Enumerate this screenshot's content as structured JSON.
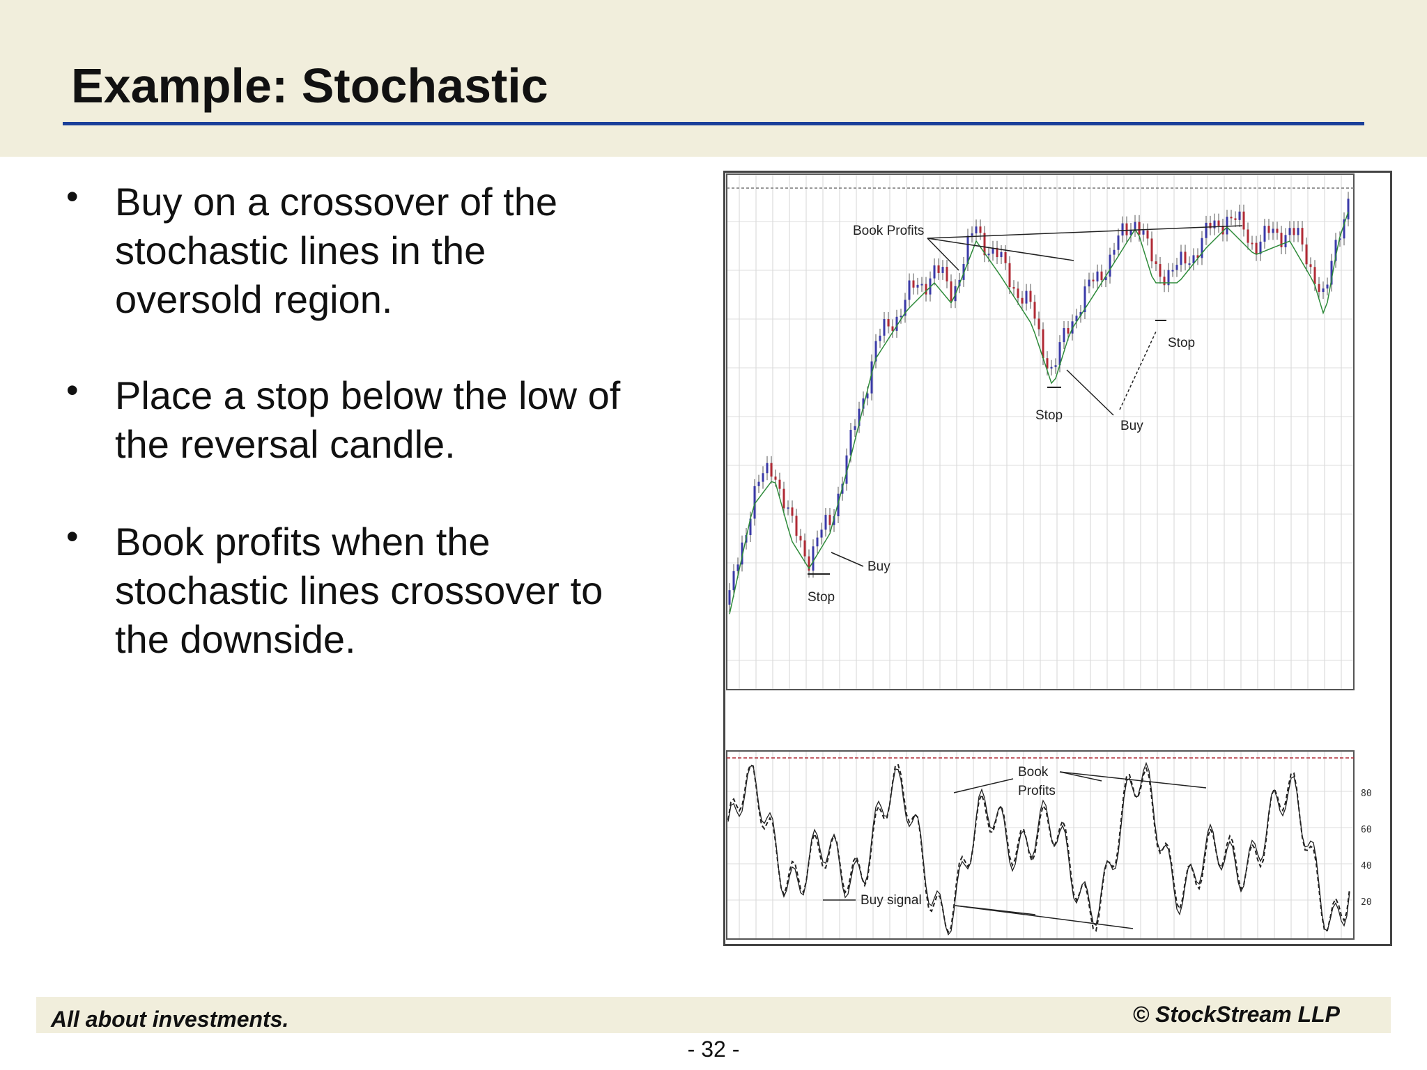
{
  "slide": {
    "title": "Example: Stochastic",
    "bullets": [
      {
        "lines": [
          "Buy on a crossover of the",
          "stochastic lines in the",
          "oversold region."
        ]
      },
      {
        "lines": [
          "Place a stop below the low of",
          "the reversal candle."
        ]
      },
      {
        "lines": [
          "Book profits when the",
          "stochastic lines crossover to",
          "the downside."
        ]
      }
    ]
  },
  "chart": {
    "annotations": {
      "book_profits_price": "Book Profits",
      "buy_1": "Buy",
      "stop_1": "Stop",
      "stop_2": "Stop",
      "buy_2": "Buy",
      "stop_3": "Stop",
      "book_profits_osc_1": "Book",
      "book_profits_osc_2": "Profits",
      "buy_signal": "Buy signal"
    },
    "oscillator_levels": [
      "80",
      "60",
      "40",
      "20"
    ],
    "colors": {
      "bull_candle": "#3a3aa8",
      "bear_candle": "#b02a35",
      "moving_average": "#2e8b3a",
      "oscillator": "#222222"
    }
  },
  "footer": {
    "tagline": "All about investments.",
    "copyright": "© StockStream LLP",
    "page": "- 32 -"
  }
}
